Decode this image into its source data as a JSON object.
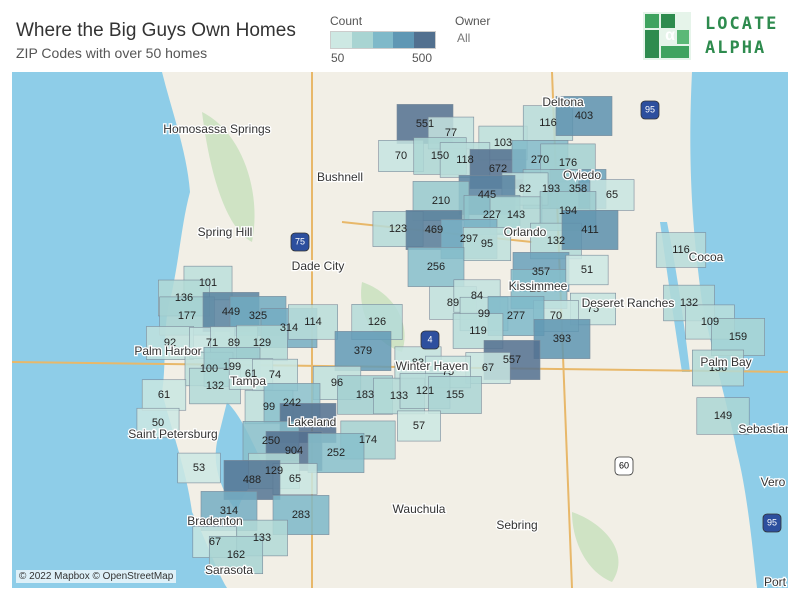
{
  "header": {
    "title": "Where the Big Guys Own Homes",
    "subtitle": "ZIP Codes with over 50 homes"
  },
  "legend": {
    "title": "Count",
    "min": 50,
    "max": 500
  },
  "filter": {
    "label": "Owner",
    "value": "All"
  },
  "logo": {
    "line1": "LOCATE",
    "line2": "ALPHA"
  },
  "places": [
    "Homosassa Springs",
    "Bushnell",
    "Deltona",
    "Spring Hill",
    "Dade City",
    "Oviedo",
    "Orlando",
    "Cocoa",
    "Kissimmee",
    "Deseret Ranches",
    "Palm Harbor",
    "Tampa",
    "Winter Haven",
    "Saint Petersburg",
    "Lakeland",
    "Wauchula",
    "Sebring",
    "Bradenton",
    "Sarasota",
    "Palm Bay",
    "Sebastian",
    "Vero",
    "Port"
  ],
  "shields": [
    "95",
    "75",
    "4",
    "60",
    "95"
  ],
  "zips": [
    551,
    77,
    103,
    116,
    403,
    70,
    150,
    118,
    672,
    270,
    176,
    358,
    193,
    82,
    65,
    445,
    210,
    227,
    143,
    194,
    123,
    469,
    297,
    95,
    132,
    411,
    116,
    256,
    357,
    256,
    51,
    101,
    136,
    177,
    449,
    325,
    314,
    114,
    126,
    89,
    84,
    99,
    75,
    132,
    109,
    159,
    70,
    277,
    393,
    119,
    92,
    71,
    89,
    129,
    379,
    557,
    67,
    83,
    75,
    136,
    100,
    199,
    132,
    61,
    74,
    96,
    183,
    133,
    121,
    155,
    61,
    99,
    242,
    499,
    174,
    57,
    149,
    50,
    250,
    904,
    252,
    53,
    129,
    65,
    488,
    314,
    283,
    67,
    133,
    162
  ],
  "attribution": "© 2022 Mapbox © OpenStreetMap"
}
